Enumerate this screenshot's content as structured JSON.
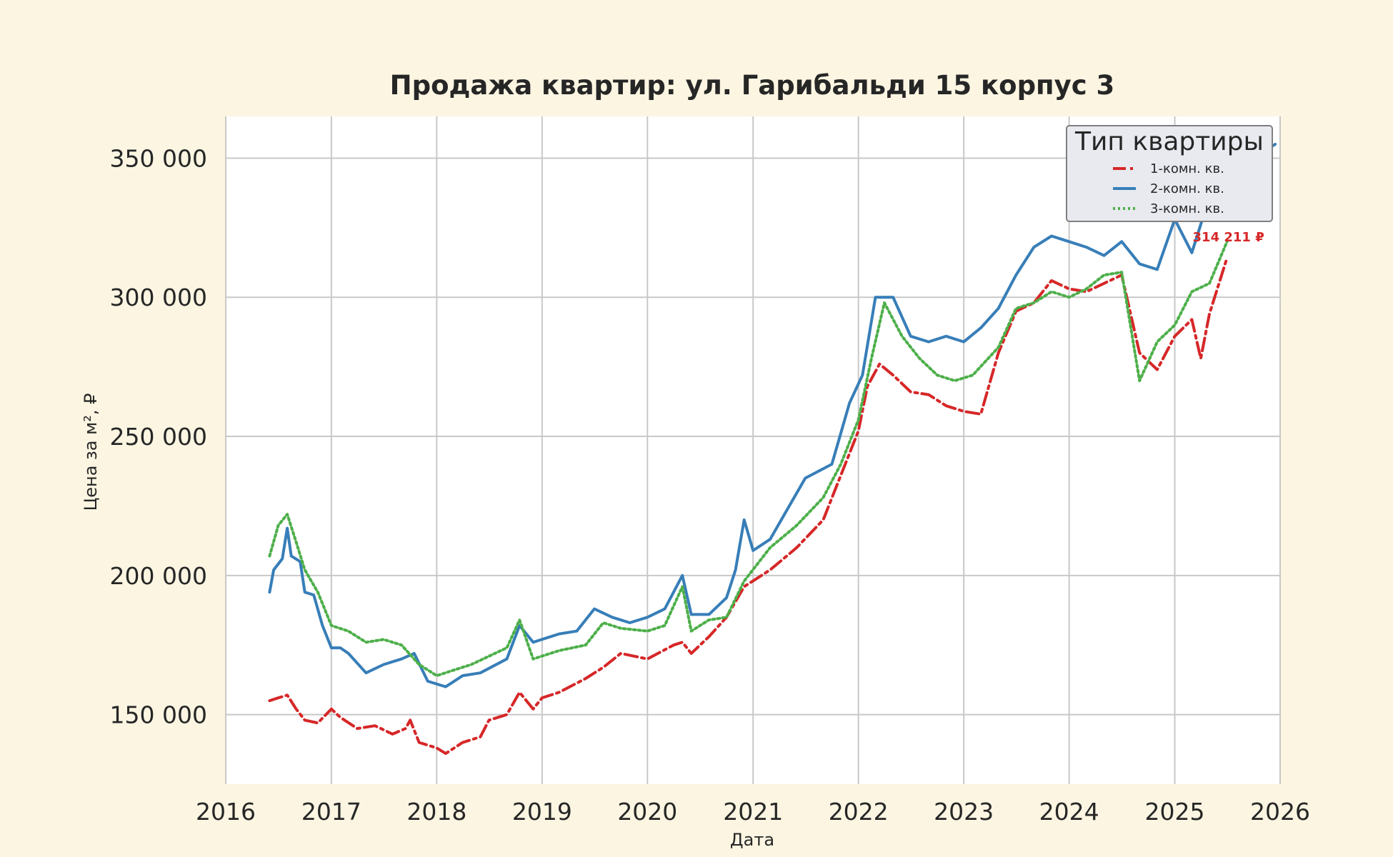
{
  "chart_data": {
    "type": "line",
    "title": "Продажа квартир: ул. Гарибальди 15 корпус 3",
    "xlabel": "Дата",
    "ylabel": "Цена за м², ₽",
    "xlim": [
      "2016-01-01",
      "2026-01-01"
    ],
    "ylim": [
      125000,
      365000
    ],
    "x_ticks": [
      "2016",
      "2017",
      "2018",
      "2019",
      "2020",
      "2021",
      "2022",
      "2023",
      "2024",
      "2025",
      "2026"
    ],
    "y_ticks": [
      150000,
      200000,
      250000,
      300000,
      350000
    ],
    "y_tick_labels": [
      "150 000",
      "200 000",
      "250 000",
      "300 000",
      "350 000"
    ],
    "grid": true,
    "legend": {
      "title": "Тип квартиры",
      "position": "top-right"
    },
    "series": [
      {
        "name": "1-комн. кв.",
        "color": "#d62728",
        "style": "dash-dot",
        "points": [
          [
            "2016-06-01",
            155000
          ],
          [
            "2016-07-01",
            156000
          ],
          [
            "2016-08-01",
            157000
          ],
          [
            "2016-09-01",
            152000
          ],
          [
            "2016-10-01",
            148000
          ],
          [
            "2016-11-15",
            147000
          ],
          [
            "2017-01-01",
            152000
          ],
          [
            "2017-02-01",
            149000
          ],
          [
            "2017-04-01",
            145000
          ],
          [
            "2017-06-01",
            146000
          ],
          [
            "2017-08-01",
            143000
          ],
          [
            "2017-09-15",
            145000
          ],
          [
            "2017-10-01",
            148000
          ],
          [
            "2017-11-01",
            140000
          ],
          [
            "2018-01-01",
            138000
          ],
          [
            "2018-02-01",
            136000
          ],
          [
            "2018-04-01",
            140000
          ],
          [
            "2018-06-01",
            142000
          ],
          [
            "2018-07-01",
            148000
          ],
          [
            "2018-09-01",
            150000
          ],
          [
            "2018-10-15",
            158000
          ],
          [
            "2018-12-01",
            152000
          ],
          [
            "2019-01-01",
            156000
          ],
          [
            "2019-03-01",
            158000
          ],
          [
            "2019-06-01",
            163000
          ],
          [
            "2019-08-01",
            167000
          ],
          [
            "2019-10-01",
            172000
          ],
          [
            "2020-01-01",
            170000
          ],
          [
            "2020-04-01",
            175000
          ],
          [
            "2020-05-01",
            176000
          ],
          [
            "2020-06-01",
            172000
          ],
          [
            "2020-08-01",
            178000
          ],
          [
            "2020-10-01",
            185000
          ],
          [
            "2020-12-01",
            196000
          ],
          [
            "2021-03-01",
            202000
          ],
          [
            "2021-06-01",
            210000
          ],
          [
            "2021-09-01",
            220000
          ],
          [
            "2021-11-01",
            236000
          ],
          [
            "2022-01-01",
            252000
          ],
          [
            "2022-02-01",
            268000
          ],
          [
            "2022-03-15",
            276000
          ],
          [
            "2022-05-01",
            272000
          ],
          [
            "2022-07-01",
            266000
          ],
          [
            "2022-09-01",
            265000
          ],
          [
            "2022-11-01",
            261000
          ],
          [
            "2023-01-01",
            259000
          ],
          [
            "2023-03-01",
            258000
          ],
          [
            "2023-05-01",
            280000
          ],
          [
            "2023-07-01",
            295000
          ],
          [
            "2023-09-01",
            298000
          ],
          [
            "2023-11-01",
            306000
          ],
          [
            "2024-01-01",
            303000
          ],
          [
            "2024-03-01",
            302000
          ],
          [
            "2024-05-01",
            305000
          ],
          [
            "2024-07-01",
            308000
          ],
          [
            "2024-09-01",
            280000
          ],
          [
            "2024-11-01",
            274000
          ],
          [
            "2025-01-01",
            286000
          ],
          [
            "2025-03-01",
            292000
          ],
          [
            "2025-04-01",
            278000
          ],
          [
            "2025-05-01",
            294000
          ],
          [
            "2025-07-01",
            314211
          ]
        ]
      },
      {
        "name": "2-комн. кв.",
        "color": "#377eb8",
        "style": "solid",
        "points": [
          [
            "2016-06-01",
            194000
          ],
          [
            "2016-06-15",
            202000
          ],
          [
            "2016-07-15",
            206000
          ],
          [
            "2016-08-01",
            217000
          ],
          [
            "2016-08-15",
            207000
          ],
          [
            "2016-09-15",
            205000
          ],
          [
            "2016-10-01",
            194000
          ],
          [
            "2016-11-01",
            193000
          ],
          [
            "2016-12-01",
            182000
          ],
          [
            "2017-01-01",
            174000
          ],
          [
            "2017-02-01",
            174000
          ],
          [
            "2017-03-01",
            172000
          ],
          [
            "2017-05-01",
            165000
          ],
          [
            "2017-07-01",
            168000
          ],
          [
            "2017-09-01",
            170000
          ],
          [
            "2017-10-15",
            172000
          ],
          [
            "2017-12-01",
            162000
          ],
          [
            "2018-02-01",
            160000
          ],
          [
            "2018-04-01",
            164000
          ],
          [
            "2018-06-01",
            165000
          ],
          [
            "2018-09-01",
            170000
          ],
          [
            "2018-10-15",
            182000
          ],
          [
            "2018-12-01",
            176000
          ],
          [
            "2019-03-01",
            179000
          ],
          [
            "2019-05-01",
            180000
          ],
          [
            "2019-07-01",
            188000
          ],
          [
            "2019-09-01",
            185000
          ],
          [
            "2019-11-01",
            183000
          ],
          [
            "2020-01-01",
            185000
          ],
          [
            "2020-03-01",
            188000
          ],
          [
            "2020-05-01",
            200000
          ],
          [
            "2020-06-01",
            186000
          ],
          [
            "2020-08-01",
            186000
          ],
          [
            "2020-10-01",
            192000
          ],
          [
            "2020-11-01",
            202000
          ],
          [
            "2020-12-01",
            220000
          ],
          [
            "2021-01-01",
            209000
          ],
          [
            "2021-03-01",
            213000
          ],
          [
            "2021-05-01",
            224000
          ],
          [
            "2021-07-01",
            235000
          ],
          [
            "2021-10-01",
            240000
          ],
          [
            "2021-12-01",
            262000
          ],
          [
            "2022-01-15",
            272000
          ],
          [
            "2022-03-01",
            300000
          ],
          [
            "2022-05-01",
            300000
          ],
          [
            "2022-07-01",
            286000
          ],
          [
            "2022-09-01",
            284000
          ],
          [
            "2022-11-01",
            286000
          ],
          [
            "2023-01-01",
            284000
          ],
          [
            "2023-03-01",
            289000
          ],
          [
            "2023-05-01",
            296000
          ],
          [
            "2023-07-01",
            308000
          ],
          [
            "2023-09-01",
            318000
          ],
          [
            "2023-11-01",
            322000
          ],
          [
            "2024-01-01",
            320000
          ],
          [
            "2024-03-01",
            318000
          ],
          [
            "2024-05-01",
            315000
          ],
          [
            "2024-07-01",
            320000
          ],
          [
            "2024-09-01",
            312000
          ],
          [
            "2024-11-01",
            310000
          ],
          [
            "2025-01-01",
            328000
          ],
          [
            "2025-03-01",
            316000
          ],
          [
            "2025-05-01",
            336000
          ],
          [
            "2025-07-01",
            342000
          ],
          [
            "2025-10-01",
            350000
          ],
          [
            "2025-12-15",
            355000
          ]
        ]
      },
      {
        "name": "3-комн. кв.",
        "color": "#4daf4a",
        "style": "dotted",
        "points": [
          [
            "2016-06-01",
            207000
          ],
          [
            "2016-07-01",
            218000
          ],
          [
            "2016-08-01",
            222000
          ],
          [
            "2016-09-01",
            212000
          ],
          [
            "2016-10-01",
            202000
          ],
          [
            "2016-11-15",
            194000
          ],
          [
            "2017-01-01",
            182000
          ],
          [
            "2017-03-01",
            180000
          ],
          [
            "2017-05-01",
            176000
          ],
          [
            "2017-07-01",
            177000
          ],
          [
            "2017-09-01",
            175000
          ],
          [
            "2017-11-01",
            168000
          ],
          [
            "2018-01-01",
            164000
          ],
          [
            "2018-03-01",
            166000
          ],
          [
            "2018-05-01",
            168000
          ],
          [
            "2018-07-01",
            171000
          ],
          [
            "2018-09-01",
            174000
          ],
          [
            "2018-10-15",
            184000
          ],
          [
            "2018-12-01",
            170000
          ],
          [
            "2019-03-01",
            173000
          ],
          [
            "2019-06-01",
            175000
          ],
          [
            "2019-08-01",
            183000
          ],
          [
            "2019-10-01",
            181000
          ],
          [
            "2020-01-01",
            180000
          ],
          [
            "2020-03-01",
            182000
          ],
          [
            "2020-05-01",
            196000
          ],
          [
            "2020-06-01",
            180000
          ],
          [
            "2020-08-01",
            184000
          ],
          [
            "2020-10-01",
            185000
          ],
          [
            "2020-12-01",
            198000
          ],
          [
            "2021-03-01",
            210000
          ],
          [
            "2021-06-01",
            218000
          ],
          [
            "2021-09-01",
            228000
          ],
          [
            "2021-11-01",
            240000
          ],
          [
            "2022-01-01",
            256000
          ],
          [
            "2022-02-15",
            278000
          ],
          [
            "2022-04-01",
            298000
          ],
          [
            "2022-06-01",
            286000
          ],
          [
            "2022-08-01",
            278000
          ],
          [
            "2022-10-01",
            272000
          ],
          [
            "2022-12-01",
            270000
          ],
          [
            "2023-02-01",
            272000
          ],
          [
            "2023-05-01",
            282000
          ],
          [
            "2023-07-01",
            296000
          ],
          [
            "2023-09-01",
            298000
          ],
          [
            "2023-11-01",
            302000
          ],
          [
            "2024-01-01",
            300000
          ],
          [
            "2024-03-01",
            303000
          ],
          [
            "2024-05-01",
            308000
          ],
          [
            "2024-07-01",
            309000
          ],
          [
            "2024-09-01",
            270000
          ],
          [
            "2024-11-01",
            284000
          ],
          [
            "2025-01-01",
            290000
          ],
          [
            "2025-03-01",
            302000
          ],
          [
            "2025-05-01",
            305000
          ],
          [
            "2025-07-01",
            320000
          ]
        ]
      }
    ],
    "annotations": [
      {
        "text": "314 211 ₽",
        "x": "2025-07-01",
        "y": 314211,
        "color": "#d62728"
      }
    ]
  }
}
